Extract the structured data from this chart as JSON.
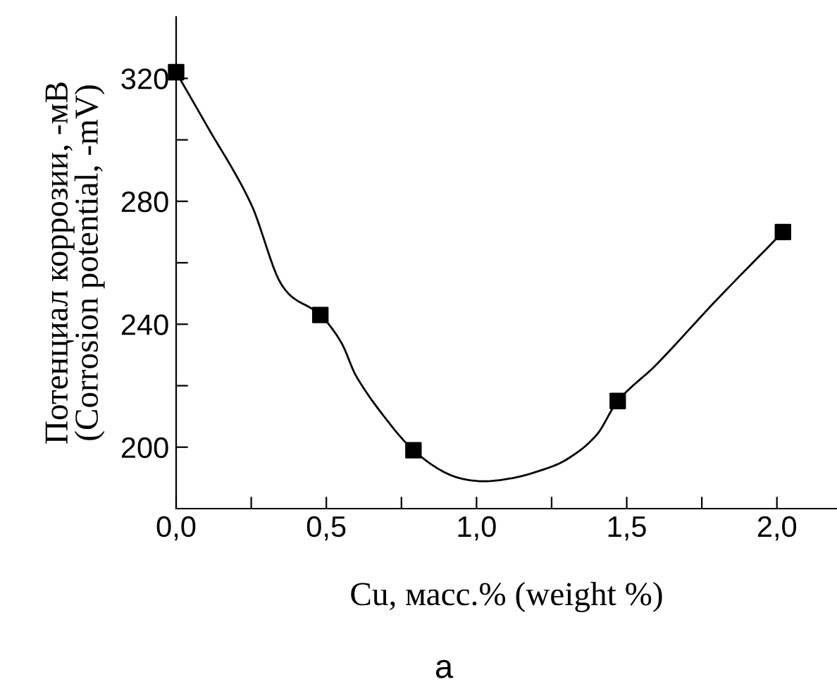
{
  "chart_data": {
    "type": "scatter",
    "xlabel": "Cu, масс.% (weight %)",
    "ylabel": "Потенциал коррозии, -мВ\n(Corrosion potential, -mV)",
    "annotations": [
      "а"
    ],
    "xlim": [
      0,
      2.2
    ],
    "xticks": [
      {
        "value": 0,
        "label": "0,0"
      },
      {
        "value": 0.25,
        "label": null
      },
      {
        "value": 0.5,
        "label": "0,5"
      },
      {
        "value": 0.75,
        "label": null
      },
      {
        "value": 1.0,
        "label": "1,0"
      },
      {
        "value": 1.25,
        "label": null
      },
      {
        "value": 1.5,
        "label": "1,5"
      },
      {
        "value": 1.75,
        "label": null
      },
      {
        "value": 2.0,
        "label": "2,0"
      }
    ],
    "ylim": [
      180,
      340
    ],
    "yticks": [
      200,
      {
        "value": 220,
        "label": null
      },
      240,
      {
        "value": 260,
        "label": null
      },
      280,
      {
        "value": 300,
        "label": null
      },
      320
    ],
    "grid": false,
    "legend": false,
    "series": [
      {
        "type": "line",
        "color": "#000000",
        "marker": "none",
        "line_style": "solid",
        "x": [
          0.0,
          0.1,
          0.25,
          0.35,
          0.48,
          0.55,
          0.6,
          0.7,
          0.79,
          0.9,
          1.0,
          1.1,
          1.2,
          1.3,
          1.4,
          1.47,
          1.6,
          1.8,
          2.02
        ],
        "values": [
          322,
          305,
          279,
          253,
          243,
          234,
          223,
          209,
          199,
          191.5,
          189,
          189.6,
          192,
          196,
          204,
          215,
          227,
          248,
          270
        ]
      },
      {
        "color": "#000000",
        "marker": "square",
        "x": [
          0.0,
          0.48,
          0.79,
          1.47,
          2.02
        ],
        "values": [
          322,
          243,
          199,
          215,
          270
        ]
      }
    ]
  }
}
